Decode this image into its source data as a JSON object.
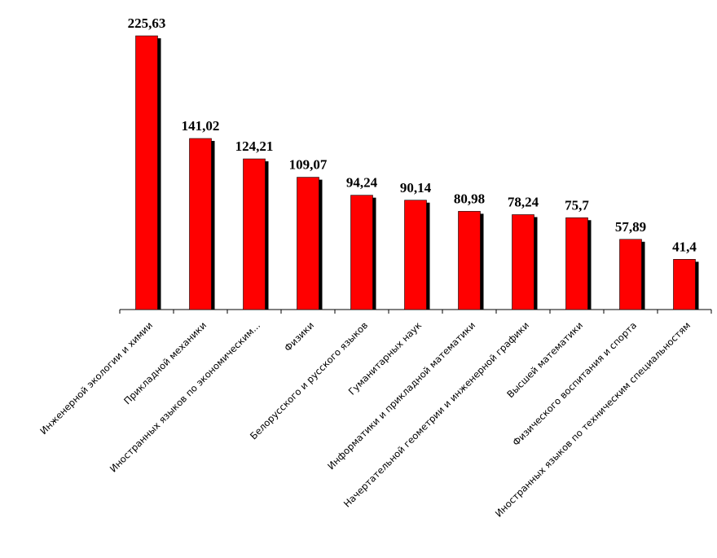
{
  "chart_data": {
    "type": "bar",
    "categories": [
      "Инженерной экологии и химии",
      "Прикладной механики",
      "Иностранных языков по экономическим...",
      "Физики",
      "Белорусского и русского языков",
      "Гуманитарных наук",
      "Информатики и прикладной математики",
      "Начертательной геометрии и инженерной графики",
      "Высшей математики",
      "Физического воспитания и спорта",
      "Иностранных языков по техническим специальностям"
    ],
    "values": [
      225.63,
      141.02,
      124.21,
      109.07,
      94.24,
      90.14,
      80.98,
      78.24,
      75.7,
      57.89,
      41.4
    ],
    "value_labels": [
      "225,63",
      "141,02",
      "124,21",
      "109,07",
      "94,24",
      "90,14",
      "80,98",
      "78,24",
      "75,7",
      "57,89",
      "41,4"
    ],
    "color": "#ff0000",
    "shadow_color": "#000000"
  }
}
